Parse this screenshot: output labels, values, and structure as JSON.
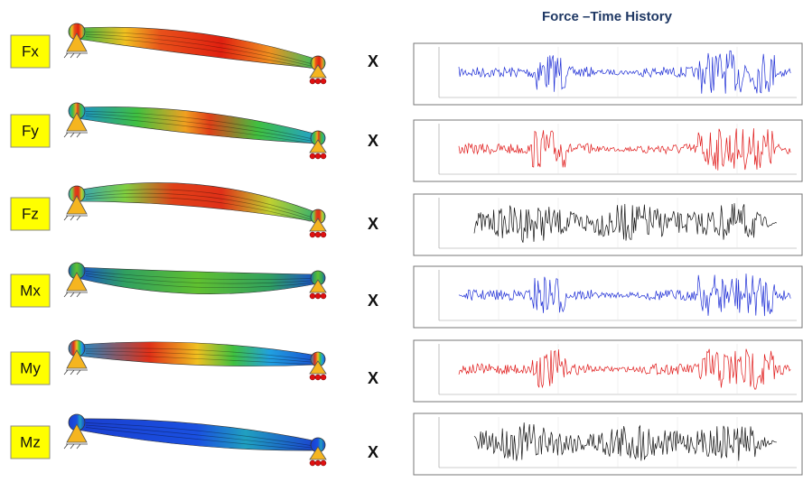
{
  "title": "Force –Time History",
  "rows": [
    {
      "label": "Fx",
      "operator": "X",
      "trace_color": "#1f2fd6"
    },
    {
      "label": "Fy",
      "operator": "X",
      "trace_color": "#e01818"
    },
    {
      "label": "Fz",
      "operator": "X",
      "trace_color": "#111111"
    },
    {
      "label": "Mx",
      "operator": "X",
      "trace_color": "#1f2fd6"
    },
    {
      "label": "My",
      "operator": "X",
      "trace_color": "#e01818"
    },
    {
      "label": "Mz",
      "operator": "X",
      "trace_color": "#111111"
    }
  ]
}
